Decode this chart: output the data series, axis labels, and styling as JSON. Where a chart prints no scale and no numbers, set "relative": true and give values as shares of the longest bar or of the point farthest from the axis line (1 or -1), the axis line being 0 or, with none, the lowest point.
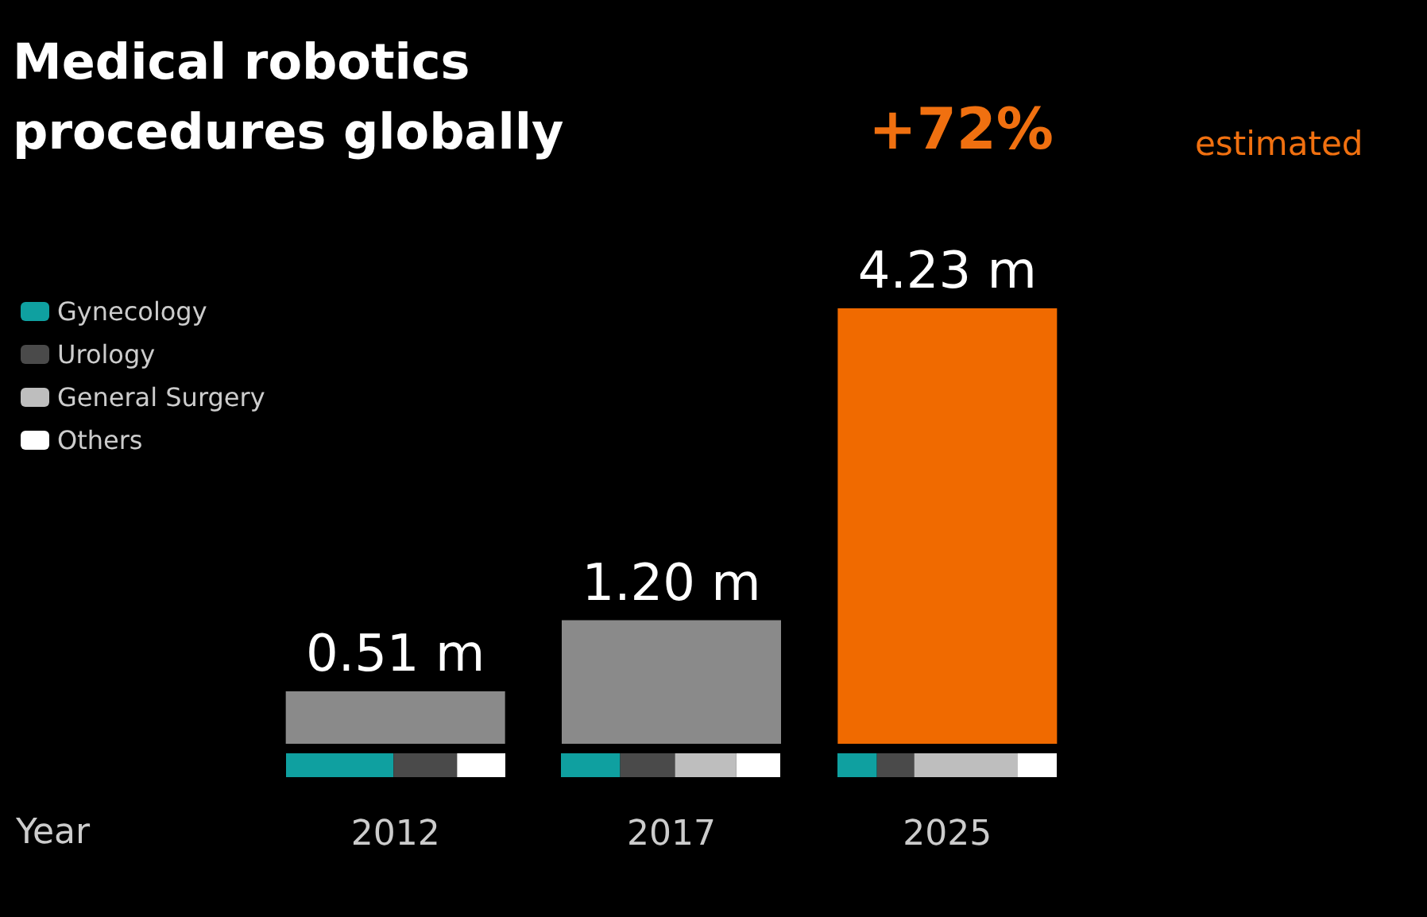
{
  "chart_data": [
    {
      "type": "bar",
      "title": "Medical robotics\nprocedures globally",
      "xlabel": "Year",
      "categories": [
        "2012",
        "2017",
        "2025"
      ],
      "values": [
        0.51,
        1.2,
        4.23
      ],
      "colors": [
        "#8a8a8a",
        "#8a8a8a",
        "#f06a00"
      ],
      "value_labels": [
        "0.51 m",
        "1.20 m",
        "4.23 m"
      ],
      "annotations": [
        "+72%",
        "estimated"
      ],
      "grid": false,
      "legend": false
    },
    {
      "type": "bar",
      "orientation": "horizontal",
      "stacked": true,
      "relative": true,
      "categories": [
        null
      ],
      "legend": "left",
      "grid": false,
      "series": [
        {
          "name": "Gynecology",
          "color": "#0fa0a0",
          "values": [
            0.49
          ]
        },
        {
          "name": "Urology",
          "color": "#4a4a4a",
          "values": [
            0.29
          ]
        },
        {
          "name": "General Surgery",
          "color": "#bebebe",
          "values": [
            0
          ]
        },
        {
          "name": "Others",
          "color": "#ffffff",
          "values": [
            0.22
          ]
        }
      ]
    },
    {
      "type": "bar",
      "orientation": "horizontal",
      "stacked": true,
      "relative": true,
      "categories": [
        null
      ],
      "grid": false,
      "series": [
        {
          "color": "#0fa0a0",
          "values": [
            0.27
          ]
        },
        {
          "color": "#4a4a4a",
          "values": [
            0.25
          ]
        },
        {
          "color": "#bebebe",
          "values": [
            0.28
          ]
        },
        {
          "color": "#ffffff",
          "values": [
            0.2
          ]
        }
      ]
    },
    {
      "type": "bar",
      "orientation": "horizontal",
      "stacked": true,
      "relative": true,
      "categories": [
        null
      ],
      "grid": false,
      "series": [
        {
          "color": "#0fa0a0",
          "values": [
            0.18
          ]
        },
        {
          "color": "#4a4a4a",
          "values": [
            0.17
          ]
        },
        {
          "color": "#bebebe",
          "values": [
            0.47
          ]
        },
        {
          "color": "#ffffff",
          "values": [
            0.18
          ]
        }
      ]
    }
  ]
}
